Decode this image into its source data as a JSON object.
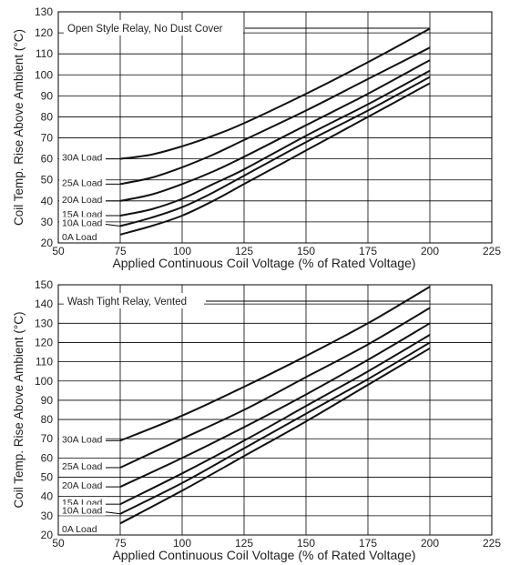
{
  "chart_data": [
    {
      "type": "line",
      "title": "Open Style Relay, No Dust Cover",
      "xlabel": "Applied Continuous Coil Voltage (% of Rated Voltage)",
      "ylabel": "Coil Temp. Rise Above Ambient (°C)",
      "xlim": [
        50,
        225
      ],
      "ylim": [
        20,
        130
      ],
      "xticks": [
        50,
        75,
        100,
        125,
        150,
        175,
        200,
        225
      ],
      "yticks": [
        20,
        30,
        40,
        50,
        60,
        70,
        80,
        90,
        100,
        110,
        120,
        130
      ],
      "grid": true,
      "series": [
        {
          "name": "30A Load",
          "x": [
            75,
            87.5,
            100,
            112.5,
            125,
            150,
            175,
            200
          ],
          "y": [
            60,
            62,
            66,
            71,
            77,
            91,
            106,
            122
          ]
        },
        {
          "name": "25A Load",
          "x": [
            75,
            87.5,
            100,
            112.5,
            125,
            150,
            175,
            200
          ],
          "y": [
            48,
            51,
            56,
            62,
            69,
            83,
            98,
            113
          ]
        },
        {
          "name": "20A Load",
          "x": [
            75,
            87.5,
            100,
            112.5,
            125,
            150,
            175,
            200
          ],
          "y": [
            40,
            43,
            48,
            54,
            61,
            76,
            91,
            107
          ]
        },
        {
          "name": "15A Load",
          "x": [
            75,
            87.5,
            100,
            112.5,
            125,
            150,
            175,
            200
          ],
          "y": [
            33,
            36,
            41,
            48,
            55,
            71,
            86,
            102
          ]
        },
        {
          "name": "10A Load",
          "x": [
            75,
            87.5,
            100,
            112.5,
            125,
            150,
            175,
            200
          ],
          "y": [
            28,
            32,
            37,
            44,
            52,
            68,
            83,
            99
          ]
        },
        {
          "name": "0A Load",
          "x": [
            75,
            87.5,
            100,
            112.5,
            125,
            150,
            175,
            200
          ],
          "y": [
            24,
            28,
            33,
            40,
            48,
            64,
            80,
            96
          ]
        }
      ]
    },
    {
      "type": "line",
      "title": "Wash Tight Relay, Vented",
      "xlabel": "Applied Continuous Coil Voltage (% of Rated Voltage)",
      "ylabel": "Coil Temp. Rise Above Ambient (°C)",
      "xlim": [
        50,
        225
      ],
      "ylim": [
        20,
        150
      ],
      "xticks": [
        50,
        75,
        100,
        125,
        150,
        175,
        200,
        225
      ],
      "yticks": [
        20,
        30,
        40,
        50,
        60,
        70,
        80,
        90,
        100,
        110,
        120,
        130,
        140,
        150
      ],
      "grid": true,
      "series": [
        {
          "name": "30A Load",
          "x": [
            75,
            100,
            125,
            150,
            175,
            200
          ],
          "y": [
            69,
            82,
            97,
            113,
            130,
            149
          ]
        },
        {
          "name": "25A Load",
          "x": [
            75,
            100,
            125,
            150,
            175,
            200
          ],
          "y": [
            55,
            70,
            85,
            102,
            119,
            138
          ]
        },
        {
          "name": "20A Load",
          "x": [
            75,
            100,
            125,
            150,
            175,
            200
          ],
          "y": [
            45,
            60,
            76,
            93,
            111,
            130
          ]
        },
        {
          "name": "15A Load",
          "x": [
            75,
            100,
            125,
            150,
            175,
            200
          ],
          "y": [
            36,
            52,
            69,
            87,
            105,
            124
          ]
        },
        {
          "name": "10A Load",
          "x": [
            75,
            100,
            125,
            150,
            175,
            200
          ],
          "y": [
            31,
            47,
            65,
            83,
            101,
            120
          ]
        },
        {
          "name": "0A Load",
          "x": [
            75,
            100,
            125,
            150,
            175,
            200
          ],
          "y": [
            26,
            43,
            61,
            79,
            98,
            117
          ]
        }
      ]
    }
  ]
}
